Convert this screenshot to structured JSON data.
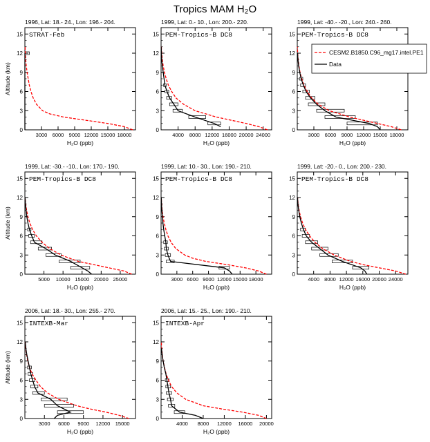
{
  "figure": {
    "title": "Tropics MAM H₂O",
    "xlabel": "H₂O (ppb)",
    "ylabel": "Altitude (km)",
    "yticks": [
      0,
      3,
      6,
      9,
      12,
      15
    ],
    "ylim": [
      0,
      16
    ]
  },
  "legend": {
    "placement": "inside-top-right of panel 3",
    "entries": [
      {
        "label": "CESM2.B1850.C96_mg17.intel.PE1",
        "color": "#ff0000",
        "style": "dashed"
      },
      {
        "label": "Data",
        "color": "#000000",
        "style": "solid"
      }
    ]
  },
  "chart_data": [
    {
      "type": "line",
      "header": "1996, Lat: 18.- 24., Lon: 196.- 204.",
      "campaign": "STRAT-Feb",
      "xlim": [
        0,
        20000
      ],
      "xticks": [
        3000,
        6000,
        9000,
        12000,
        15000,
        18000
      ],
      "model": {
        "alt": [
          0,
          0.5,
          1,
          1.5,
          2,
          2.5,
          3,
          4,
          5,
          6,
          7,
          8,
          9,
          10,
          11,
          12,
          13
        ],
        "h2o": [
          19500,
          18000,
          15000,
          11000,
          7000,
          4500,
          3200,
          2100,
          1500,
          1100,
          800,
          600,
          400,
          250,
          150,
          80,
          40
        ]
      },
      "data": {
        "alt": [
          0,
          12
        ],
        "h2o": [
          0,
          0
        ]
      },
      "boxes": [
        {
          "alt": 12,
          "lo": 0,
          "hi": 800
        }
      ]
    },
    {
      "type": "line",
      "header": "1999, Lat: 0.- 10., Lon: 200.- 220.",
      "campaign": "PEM-Tropics-B DC8",
      "xlim": [
        0,
        26000
      ],
      "xticks": [
        4000,
        8000,
        12000,
        16000,
        20000,
        24000
      ],
      "model": {
        "alt": [
          0,
          0.5,
          1,
          1.5,
          2,
          3,
          4,
          5,
          6,
          7,
          8,
          9,
          10,
          11,
          12,
          13
        ],
        "h2o": [
          25000,
          23000,
          20000,
          16500,
          13000,
          8000,
          5300,
          3500,
          2500,
          1700,
          1200,
          800,
          500,
          300,
          150,
          60
        ]
      },
      "data": {
        "alt": [
          0.5,
          1,
          2,
          3,
          4,
          5,
          6,
          7,
          8,
          9,
          10,
          11,
          12,
          13
        ],
        "h2o": [
          14000,
          12500,
          8000,
          4000,
          3000,
          2000,
          1400,
          900,
          700,
          500,
          300,
          150,
          80,
          30
        ]
      },
      "boxes": [
        {
          "alt": 1,
          "lo": 11000,
          "hi": 14000
        },
        {
          "alt": 2,
          "lo": 6500,
          "hi": 10500
        },
        {
          "alt": 3,
          "lo": 2800,
          "hi": 5000
        },
        {
          "alt": 4,
          "lo": 2000,
          "hi": 4000
        },
        {
          "alt": 5,
          "lo": 1300,
          "hi": 2500
        },
        {
          "alt": 6,
          "lo": 900,
          "hi": 1800
        },
        {
          "alt": 7,
          "lo": 600,
          "hi": 1200
        }
      ]
    },
    {
      "type": "line",
      "header": "1999, Lat: -40.- -20., Lon: 240.- 260.",
      "campaign": "PEM-Tropics-B DC8",
      "xlim": [
        0,
        20000
      ],
      "xticks": [
        3000,
        6000,
        9000,
        12000,
        15000,
        18000
      ],
      "model": {
        "alt": [
          0,
          0.5,
          1,
          1.5,
          2,
          3,
          4,
          5,
          6,
          7,
          8,
          9,
          10,
          11,
          12,
          13
        ],
        "h2o": [
          18800,
          17000,
          14500,
          12000,
          9500,
          5800,
          3800,
          2600,
          1800,
          1200,
          800,
          500,
          300,
          160,
          70,
          30
        ]
      },
      "data": {
        "alt": [
          0,
          0.5,
          1,
          2,
          3,
          4,
          5,
          6,
          7,
          8,
          9,
          10,
          11,
          12
        ],
        "h2o": [
          15000,
          14500,
          13000,
          7000,
          5000,
          3500,
          2400,
          1600,
          1100,
          700,
          450,
          250,
          120,
          50
        ]
      },
      "boxes": [
        {
          "alt": 1,
          "lo": 9000,
          "hi": 14500
        },
        {
          "alt": 2,
          "lo": 5000,
          "hi": 10500
        },
        {
          "alt": 3,
          "lo": 3500,
          "hi": 8500
        },
        {
          "alt": 4,
          "lo": 2000,
          "hi": 5000
        },
        {
          "alt": 5,
          "lo": 1500,
          "hi": 3200
        },
        {
          "alt": 6,
          "lo": 1000,
          "hi": 2200
        },
        {
          "alt": 7,
          "lo": 600,
          "hi": 1500
        },
        {
          "alt": 8,
          "lo": 400,
          "hi": 1000
        }
      ]
    },
    {
      "type": "line",
      "header": "1999, Lat: -30.- -10., Lon: 170.- 190.",
      "campaign": "PEM-Tropics-B DC8",
      "xlim": [
        0,
        29000
      ],
      "xticks": [
        5000,
        10000,
        15000,
        20000,
        25000
      ],
      "model": {
        "alt": [
          0,
          0.5,
          1,
          1.5,
          2,
          3,
          4,
          5,
          6,
          7,
          8,
          9,
          10,
          11,
          12
        ],
        "h2o": [
          28000,
          26000,
          22000,
          18000,
          14000,
          9500,
          6500,
          4500,
          3000,
          2000,
          1300,
          800,
          450,
          200,
          80
        ]
      },
      "data": {
        "alt": [
          0,
          0.5,
          1,
          2,
          3,
          4,
          5,
          6,
          7,
          8,
          9,
          10,
          11,
          12
        ],
        "h2o": [
          17500,
          16500,
          15000,
          12000,
          8000,
          5500,
          2500,
          1800,
          1200,
          800,
          500,
          300,
          150,
          60
        ]
      },
      "boxes": [
        {
          "alt": 1,
          "lo": 12000,
          "hi": 17000
        },
        {
          "alt": 2,
          "lo": 9000,
          "hi": 14500
        },
        {
          "alt": 3,
          "lo": 5500,
          "hi": 9500
        },
        {
          "alt": 4,
          "lo": 3500,
          "hi": 7000
        },
        {
          "alt": 5,
          "lo": 1500,
          "hi": 4500
        },
        {
          "alt": 6,
          "lo": 1000,
          "hi": 2500
        },
        {
          "alt": 7,
          "lo": 700,
          "hi": 1600
        }
      ]
    },
    {
      "type": "line",
      "header": "1999, Lat: 10.- 30., Lon: 190.- 210.",
      "campaign": "PEM-Tropics-B DC8",
      "xlim": [
        0,
        21000
      ],
      "xticks": [
        3000,
        6000,
        9000,
        12000,
        15000,
        18000
      ],
      "model": {
        "alt": [
          0,
          0.5,
          1,
          1.5,
          2,
          2.5,
          3,
          4,
          5,
          6,
          7,
          8,
          9,
          10,
          11,
          12
        ],
        "h2o": [
          20000,
          18500,
          16000,
          12500,
          8500,
          6000,
          4500,
          2800,
          1900,
          1300,
          900,
          600,
          350,
          200,
          100,
          40
        ]
      },
      "data": {
        "alt": [
          0,
          0.5,
          1,
          2,
          3,
          4,
          5,
          6,
          7,
          8,
          9,
          10,
          11,
          12
        ],
        "h2o": [
          13500,
          13000,
          12000,
          1800,
          1300,
          1000,
          900,
          700,
          500,
          350,
          250,
          150,
          80,
          40
        ]
      },
      "boxes": [
        {
          "alt": 1,
          "lo": 11000,
          "hi": 13000
        },
        {
          "alt": 2,
          "lo": 1000,
          "hi": 2500
        },
        {
          "alt": 3,
          "lo": 800,
          "hi": 1800
        },
        {
          "alt": 4,
          "lo": 600,
          "hi": 1400
        },
        {
          "alt": 5,
          "lo": 500,
          "hi": 1200
        }
      ]
    },
    {
      "type": "line",
      "header": "1999, Lat: -20.- 0., Lon: 200.- 230.",
      "campaign": "PEM-Tropics-B DC8",
      "xlim": [
        0,
        27000
      ],
      "xticks": [
        4000,
        8000,
        12000,
        16000,
        20000,
        24000
      ],
      "model": {
        "alt": [
          0,
          0.5,
          1,
          1.5,
          2,
          3,
          4,
          5,
          6,
          7,
          8,
          9,
          10,
          11,
          12
        ],
        "h2o": [
          26500,
          24000,
          20000,
          16000,
          13000,
          9000,
          6200,
          4300,
          3000,
          2000,
          1300,
          800,
          450,
          200,
          80
        ]
      },
      "data": {
        "alt": [
          0,
          0.5,
          1,
          2,
          3,
          4,
          5,
          6,
          7,
          8,
          9,
          10,
          11,
          12
        ],
        "h2o": [
          17000,
          16500,
          15500,
          11000,
          7500,
          5500,
          3500,
          2200,
          1500,
          1000,
          600,
          350,
          150,
          60
        ]
      },
      "boxes": [
        {
          "alt": 1,
          "lo": 13500,
          "hi": 17500
        },
        {
          "alt": 2,
          "lo": 8500,
          "hi": 13500
        },
        {
          "alt": 3,
          "lo": 5500,
          "hi": 10000
        },
        {
          "alt": 4,
          "lo": 3500,
          "hi": 7500
        },
        {
          "alt": 5,
          "lo": 2000,
          "hi": 5000
        },
        {
          "alt": 6,
          "lo": 1200,
          "hi": 3000
        },
        {
          "alt": 7,
          "lo": 800,
          "hi": 2000
        }
      ]
    },
    {
      "type": "line",
      "header": "2006, Lat: 18.- 30., Lon: 255.- 270.",
      "campaign": "INTEXB-Mar",
      "xlim": [
        0,
        17000
      ],
      "xticks": [
        3000,
        6000,
        9000,
        12000,
        15000
      ],
      "model": {
        "alt": [
          0,
          0.5,
          1,
          1.5,
          2,
          3,
          4,
          5,
          6,
          7,
          8,
          9,
          10,
          11,
          12
        ],
        "h2o": [
          16000,
          14500,
          12500,
          10000,
          8000,
          5200,
          3500,
          2400,
          1700,
          1100,
          700,
          450,
          250,
          120,
          50
        ]
      },
      "data": {
        "alt": [
          0,
          0.5,
          1,
          2,
          3,
          4,
          5,
          6,
          7,
          8,
          9,
          10,
          11,
          12
        ],
        "h2o": [
          4500,
          5000,
          7000,
          5000,
          4000,
          2000,
          1500,
          1200,
          900,
          700,
          500,
          300,
          150,
          60
        ]
      },
      "boxes": [
        {
          "alt": 1,
          "lo": 5000,
          "hi": 9000
        },
        {
          "alt": 2,
          "lo": 3000,
          "hi": 7500
        },
        {
          "alt": 3,
          "lo": 2500,
          "hi": 6500
        },
        {
          "alt": 4,
          "lo": 1200,
          "hi": 3000
        },
        {
          "alt": 5,
          "lo": 900,
          "hi": 2000
        },
        {
          "alt": 6,
          "lo": 700,
          "hi": 1500
        },
        {
          "alt": 7,
          "lo": 500,
          "hi": 1200
        },
        {
          "alt": 8,
          "lo": 400,
          "hi": 1000
        }
      ]
    },
    {
      "type": "line",
      "header": "2006, Lat: 15.- 25., Lon: 190.- 210.",
      "campaign": "INTEXB-Apr",
      "xlim": [
        0,
        21000
      ],
      "xticks": [
        4000,
        8000,
        12000,
        16000,
        20000
      ],
      "model": {
        "alt": [
          0,
          0.5,
          1,
          1.5,
          2,
          3,
          4,
          5,
          6,
          7,
          8,
          9,
          10,
          11,
          12
        ],
        "h2o": [
          20000,
          18500,
          15500,
          11500,
          8000,
          4700,
          3000,
          2000,
          1400,
          950,
          650,
          400,
          230,
          110,
          50
        ]
      },
      "data": {
        "alt": [
          0,
          0.5,
          1,
          2,
          3,
          4,
          5,
          6,
          7,
          8,
          9,
          10,
          11
        ],
        "h2o": [
          8000,
          6500,
          3500,
          2000,
          1800,
          1500,
          1300,
          1100,
          900,
          600,
          400,
          200,
          80
        ]
      },
      "boxes": [
        {
          "alt": 1,
          "lo": 2500,
          "hi": 4500
        },
        {
          "alt": 2,
          "lo": 1400,
          "hi": 2600
        },
        {
          "alt": 3,
          "lo": 1200,
          "hi": 2300
        },
        {
          "alt": 4,
          "lo": 1000,
          "hi": 2000
        },
        {
          "alt": 5,
          "lo": 900,
          "hi": 1800
        },
        {
          "alt": 6,
          "lo": 800,
          "hi": 1500
        }
      ]
    }
  ]
}
